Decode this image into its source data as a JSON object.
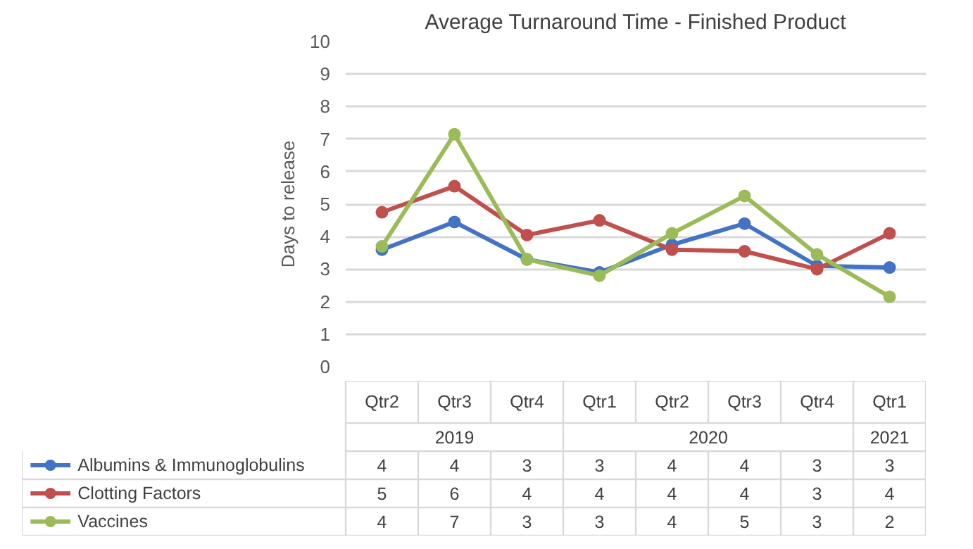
{
  "chart_data": {
    "type": "line",
    "title": "Average Turnaround Time - Finished Product",
    "ylabel": "Days to release",
    "categories": [
      "Qtr2",
      "Qtr3",
      "Qtr4",
      "Qtr1",
      "Qtr2",
      "Qtr3",
      "Qtr4",
      "Qtr1"
    ],
    "annotations": [
      "2019",
      "2020",
      "2021"
    ],
    "series": [
      {
        "name": "Albumins & Immunoglobulins",
        "color": "#4472c4",
        "values": [
          3.6,
          4.45,
          3.3,
          2.9,
          3.75,
          4.4,
          3.1,
          3.05
        ],
        "value_labels": [
          "4",
          "4",
          "3",
          "3",
          "4",
          "4",
          "3",
          "3"
        ]
      },
      {
        "name": "Clotting Factors",
        "color": "#c0504d",
        "values": [
          4.75,
          5.55,
          4.05,
          4.5,
          3.6,
          3.55,
          3.0,
          4.1
        ],
        "value_labels": [
          "5",
          "6",
          "4",
          "4",
          "4",
          "4",
          "3",
          "4"
        ]
      },
      {
        "name": "Vaccines",
        "color": "#9bbb59",
        "values": [
          3.7,
          7.15,
          3.3,
          2.8,
          4.1,
          5.25,
          3.45,
          2.15
        ],
        "value_labels": [
          "4",
          "7",
          "3",
          "3",
          "4",
          "5",
          "3",
          "2"
        ]
      }
    ],
    "ylim": [
      0,
      10
    ],
    "yticks": [
      0,
      1,
      2,
      3,
      4,
      5,
      6,
      7,
      8,
      9,
      10
    ],
    "grid": "y",
    "legend": "bottom",
    "marker": "circle",
    "line_style": "solid"
  }
}
